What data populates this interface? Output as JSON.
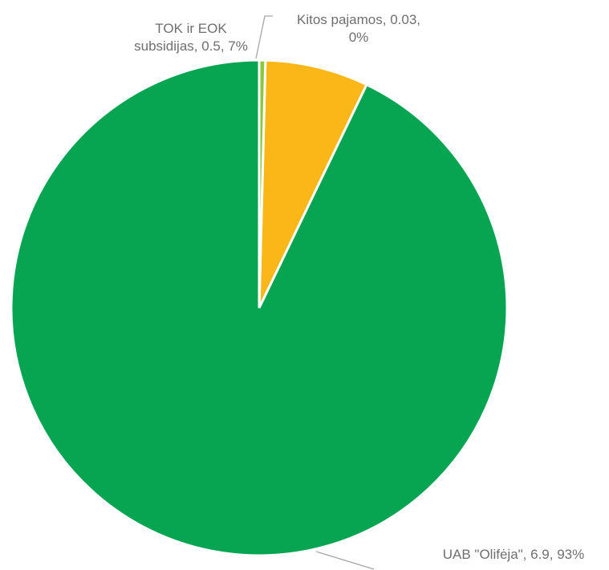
{
  "chart_data": {
    "type": "pie",
    "title": "",
    "slices": [
      {
        "name": "UAB \"Olifėja\"",
        "value": 6.9,
        "percent": "93%",
        "color": "#07a452",
        "label_lines": [
          "UAB \"Olifėja\", 6.9, 93%"
        ]
      },
      {
        "name": "TOK ir EOK subsidijas",
        "value": 0.5,
        "percent": "7%",
        "color": "#fbb718",
        "label_lines": [
          "TOK ir EOK",
          "subsidijas, 0.5, 7%"
        ]
      },
      {
        "name": "Kitos pajamos",
        "value": 0.03,
        "percent": "0%",
        "color": "#8dc63f",
        "label_lines": [
          "Kitos pajamos, 0.03,",
          "0%"
        ]
      }
    ],
    "legend": "none",
    "data_labels": "outside-with-leader-lines"
  }
}
